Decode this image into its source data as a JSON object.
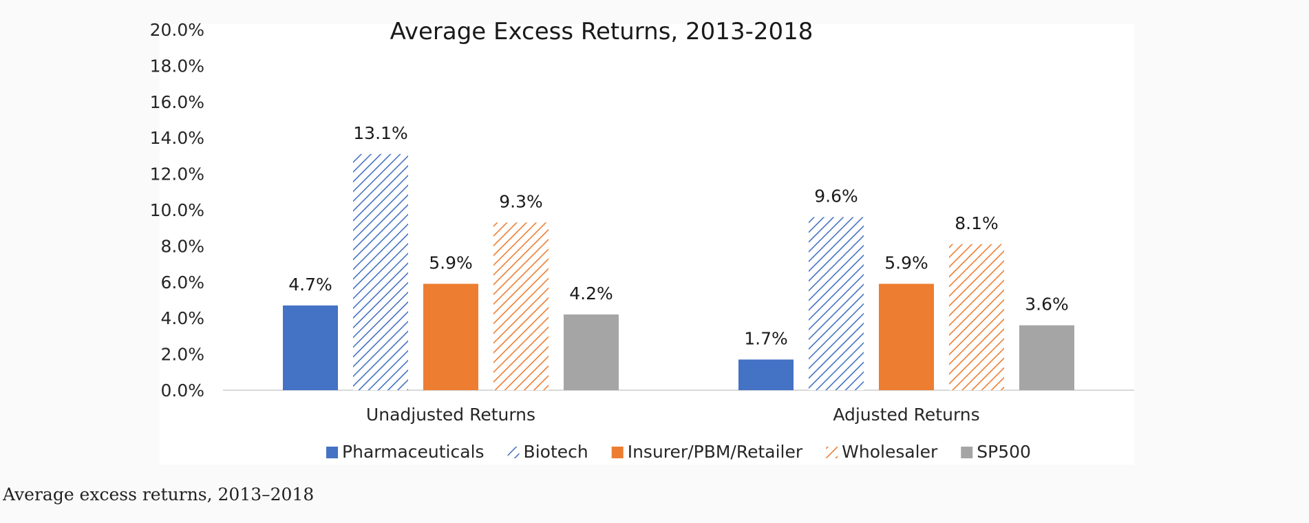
{
  "figure": {
    "caption": "Average excess returns, 2013–2018"
  },
  "chart_data": {
    "type": "bar",
    "title": "Average Excess Returns, 2013-2018",
    "categories": [
      "Unadjusted Returns",
      "Adjusted Returns"
    ],
    "series": [
      {
        "name": "Pharmaceuticals",
        "values": [
          4.7,
          1.7
        ],
        "labels": [
          "4.7%",
          "1.7%"
        ],
        "color": "#4472c4",
        "pattern": "solid"
      },
      {
        "name": "Biotech",
        "values": [
          13.1,
          9.6
        ],
        "labels": [
          "13.1%",
          "9.6%"
        ],
        "color": "#4472c4",
        "pattern": "hatched"
      },
      {
        "name": "Insurer/PBM/Retailer",
        "values": [
          5.9,
          5.9
        ],
        "labels": [
          "5.9%",
          "5.9%"
        ],
        "color": "#ed7d31",
        "pattern": "solid"
      },
      {
        "name": "Wholesaler",
        "values": [
          9.3,
          8.1
        ],
        "labels": [
          "9.3%",
          "8.1%"
        ],
        "color": "#ed7d31",
        "pattern": "hatched"
      },
      {
        "name": "SP500",
        "values": [
          4.2,
          3.6
        ],
        "labels": [
          "4.2%",
          "3.6%"
        ],
        "color": "#a5a5a5",
        "pattern": "solid"
      }
    ],
    "ylim": [
      0,
      20
    ],
    "yticks": [
      "0.0%",
      "2.0%",
      "4.0%",
      "6.0%",
      "8.0%",
      "10.0%",
      "12.0%",
      "14.0%",
      "16.0%",
      "18.0%",
      "20.0%"
    ],
    "xlabel": "",
    "ylabel": "",
    "grid": false,
    "legend_position": "bottom"
  }
}
